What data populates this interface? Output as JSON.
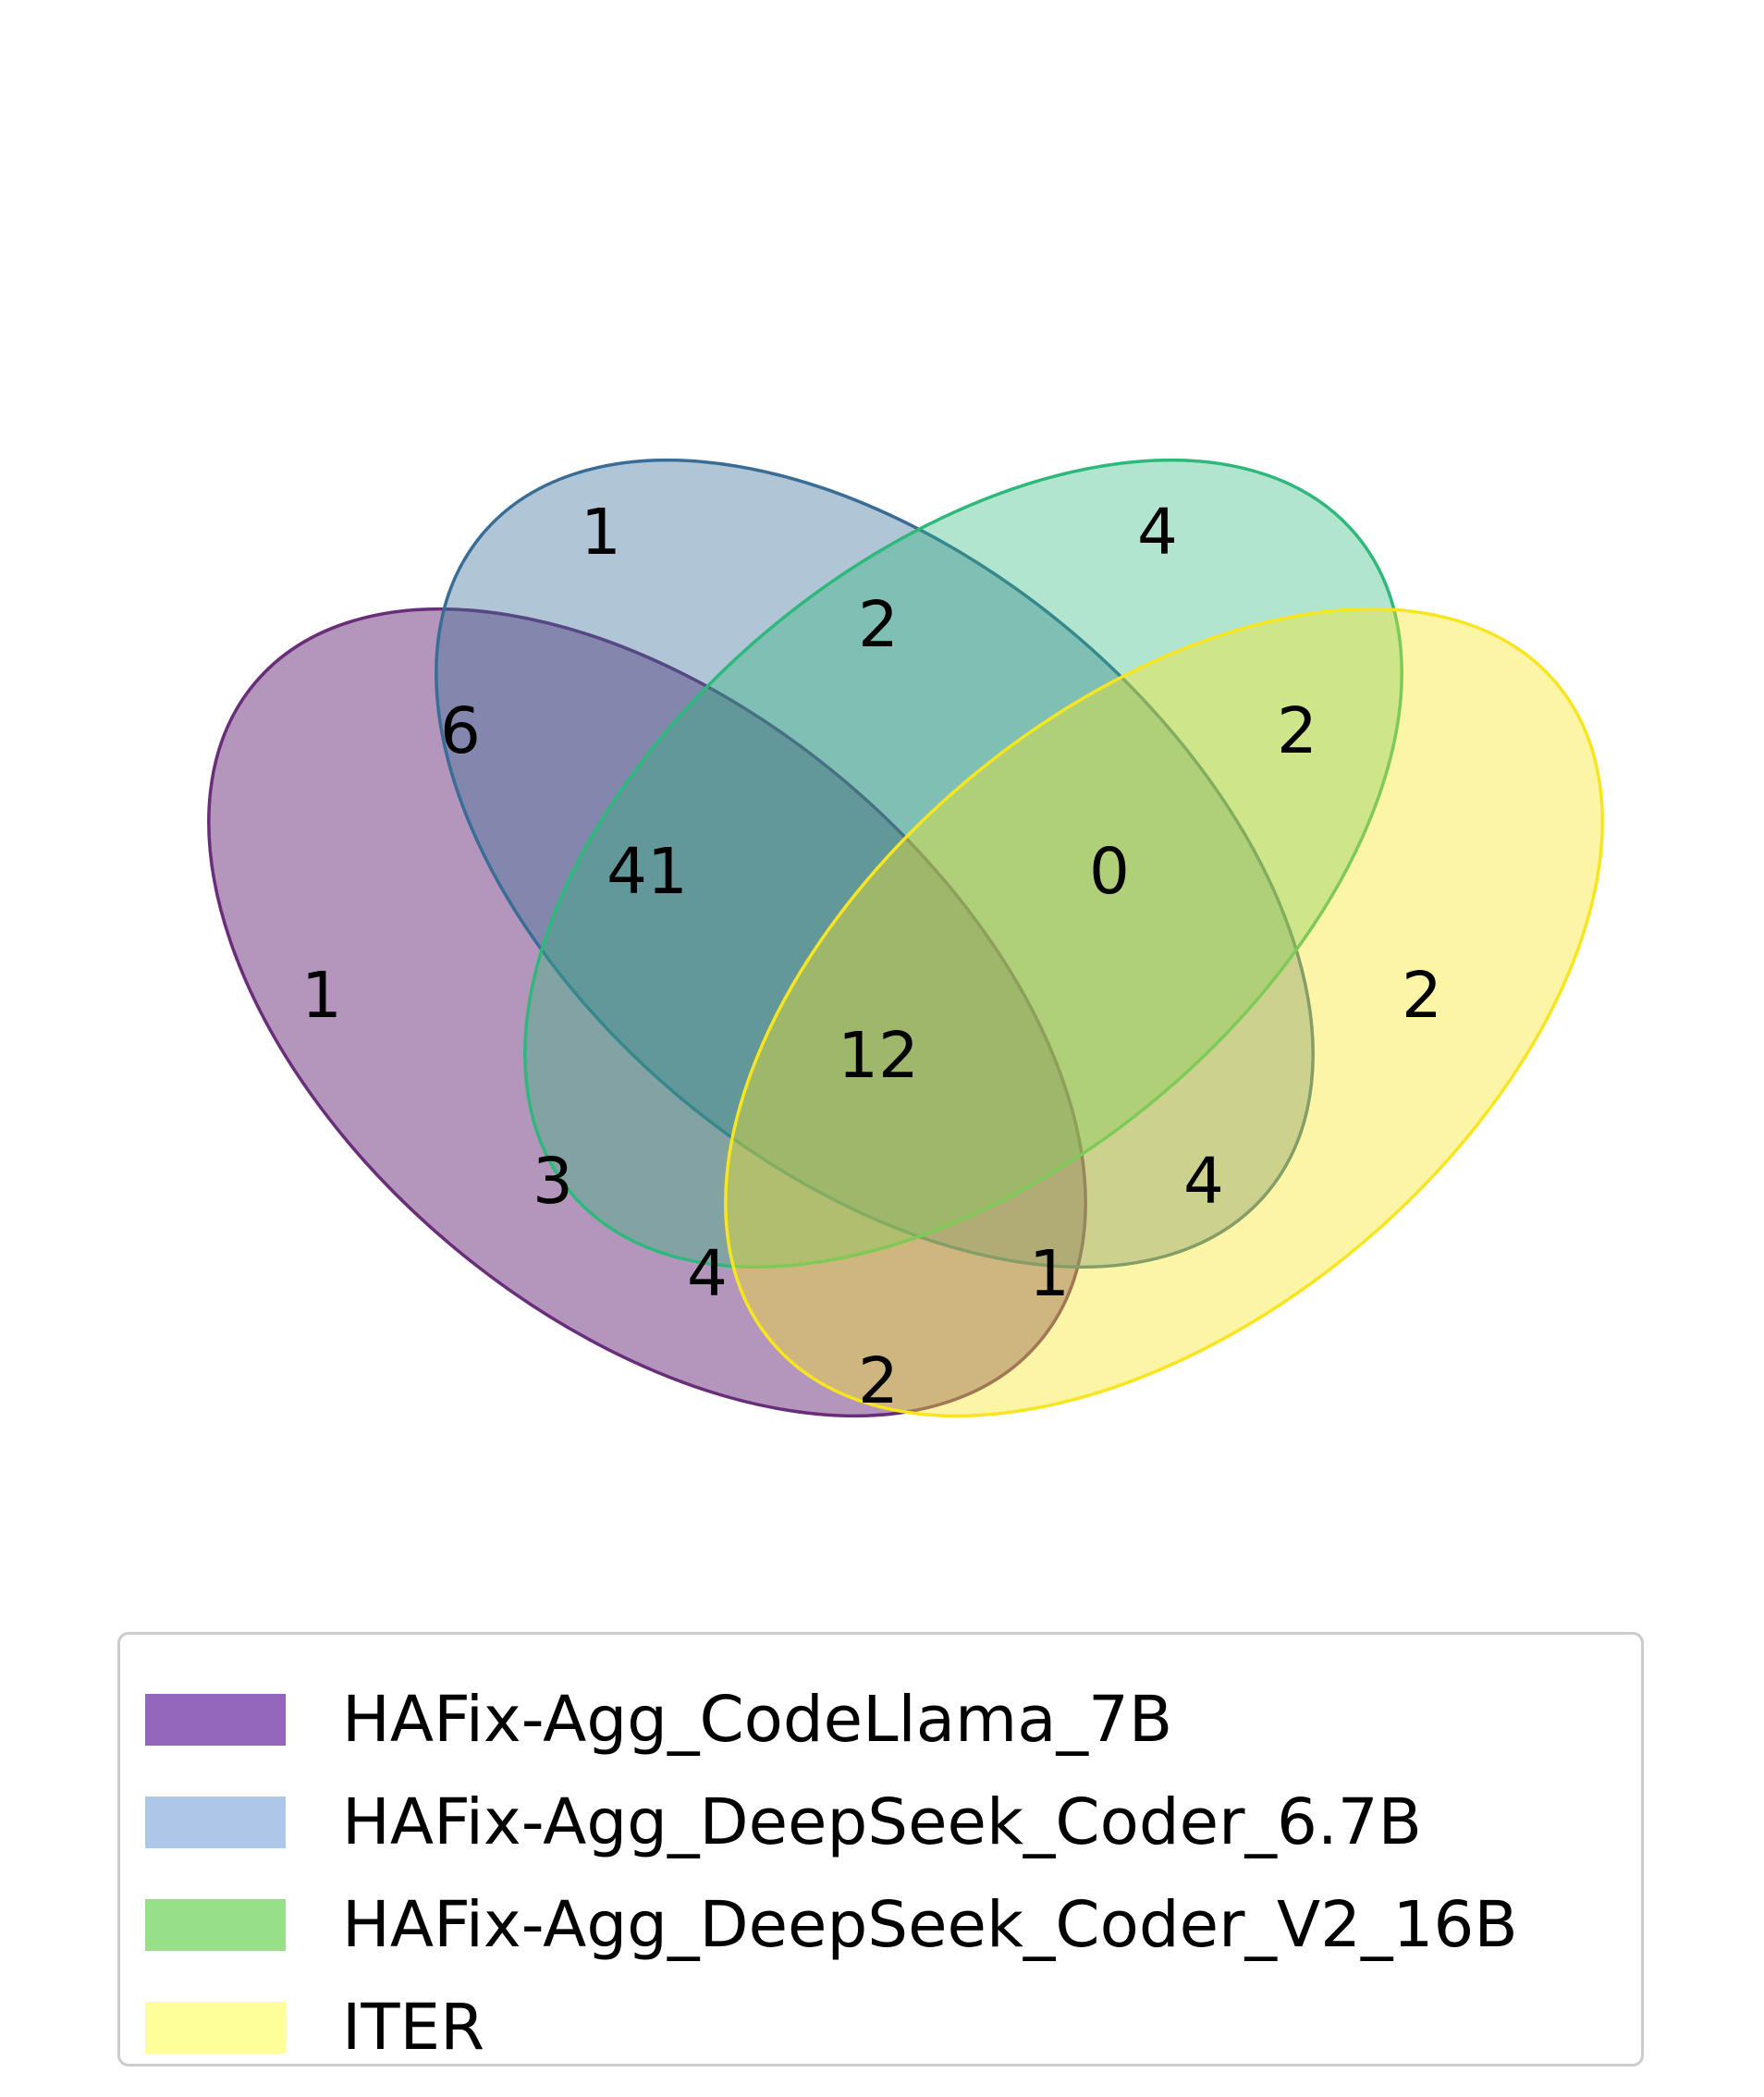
{
  "chart_data": {
    "type": "venn",
    "sets": [
      {
        "name": "HAFix-Agg_CodeLlama_7B",
        "fill": "#6a2d7a",
        "stroke": "#6a2d7a",
        "legend_color": "#9467bd"
      },
      {
        "name": "HAFix-Agg_DeepSeek_Coder_6.7B",
        "fill": "#3a6d96",
        "stroke": "#3a6d96",
        "legend_color": "#aec7e8"
      },
      {
        "name": "HAFix-Agg_DeepSeek_Coder_V2_16B",
        "fill": "#2fb87c",
        "stroke": "#2fb87c",
        "legend_color": "#98df8a"
      },
      {
        "name": "ITER",
        "fill": "#f7e520",
        "stroke": "#f7e520",
        "legend_color": "#ffff99"
      }
    ],
    "regions": [
      {
        "sets": [
          "HAFix-Agg_DeepSeek_Coder_6.7B"
        ],
        "value": "1"
      },
      {
        "sets": [
          "HAFix-Agg_DeepSeek_Coder_V2_16B"
        ],
        "value": "4"
      },
      {
        "sets": [
          "HAFix-Agg_DeepSeek_Coder_6.7B",
          "HAFix-Agg_DeepSeek_Coder_V2_16B"
        ],
        "value": "2"
      },
      {
        "sets": [
          "HAFix-Agg_CodeLlama_7B",
          "HAFix-Agg_DeepSeek_Coder_6.7B"
        ],
        "value": "6"
      },
      {
        "sets": [
          "HAFix-Agg_DeepSeek_Coder_V2_16B",
          "ITER"
        ],
        "value": "2"
      },
      {
        "sets": [
          "HAFix-Agg_CodeLlama_7B",
          "HAFix-Agg_DeepSeek_Coder_6.7B",
          "HAFix-Agg_DeepSeek_Coder_V2_16B"
        ],
        "value": "41"
      },
      {
        "sets": [
          "HAFix-Agg_DeepSeek_Coder_6.7B",
          "HAFix-Agg_DeepSeek_Coder_V2_16B",
          "ITER"
        ],
        "value": "0"
      },
      {
        "sets": [
          "HAFix-Agg_CodeLlama_7B"
        ],
        "value": "1"
      },
      {
        "sets": [
          "ITER"
        ],
        "value": "2"
      },
      {
        "sets": [
          "HAFix-Agg_CodeLlama_7B",
          "HAFix-Agg_DeepSeek_Coder_6.7B",
          "HAFix-Agg_DeepSeek_Coder_V2_16B",
          "ITER"
        ],
        "value": "12"
      },
      {
        "sets": [
          "HAFix-Agg_CodeLlama_7B",
          "HAFix-Agg_DeepSeek_Coder_V2_16B"
        ],
        "value": "3"
      },
      {
        "sets": [
          "HAFix-Agg_DeepSeek_Coder_6.7B",
          "ITER"
        ],
        "value": "4"
      },
      {
        "sets": [
          "HAFix-Agg_CodeLlama_7B",
          "HAFix-Agg_DeepSeek_Coder_V2_16B",
          "ITER"
        ],
        "value": "4"
      },
      {
        "sets": [
          "HAFix-Agg_CodeLlama_7B",
          "HAFix-Agg_DeepSeek_Coder_6.7B",
          "ITER"
        ],
        "value": "1"
      },
      {
        "sets": [
          "HAFix-Agg_CodeLlama_7B",
          "ITER"
        ],
        "value": "2"
      }
    ]
  },
  "legend": {
    "items": [
      {
        "label": "HAFix-Agg_CodeLlama_7B",
        "color": "#9467bd"
      },
      {
        "label": "HAFix-Agg_DeepSeek_Coder_6.7B",
        "color": "#aec7e8"
      },
      {
        "label": "HAFix-Agg_DeepSeek_Coder_V2_16B",
        "color": "#98df8a"
      },
      {
        "label": "ITER",
        "color": "#ffff99"
      }
    ]
  }
}
